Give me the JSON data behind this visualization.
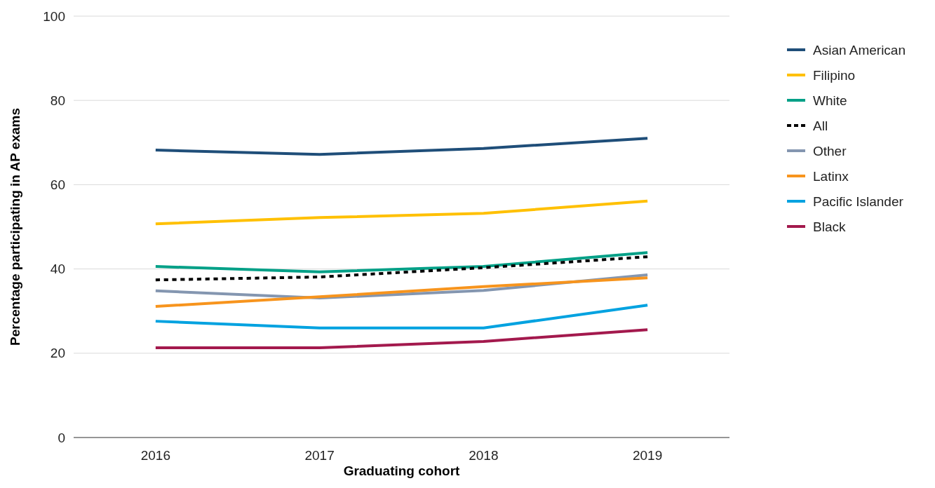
{
  "chart_data": {
    "type": "line",
    "xlabel": "Graduating cohort",
    "ylabel": "Percentage participating in AP exams",
    "categories": [
      "2016",
      "2017",
      "2018",
      "2019"
    ],
    "ylim": [
      0,
      100
    ],
    "yticks": [
      0,
      20,
      40,
      60,
      80,
      100
    ],
    "grid": "y",
    "legend": "right",
    "line_style": "solid",
    "series": [
      {
        "name": "Asian American",
        "color": "#1f4e79",
        "values": [
          68.2,
          67.2,
          68.6,
          71.0
        ]
      },
      {
        "name": "Filipino",
        "color": "#ffc000",
        "values": [
          50.7,
          52.2,
          53.2,
          56.1
        ]
      },
      {
        "name": "White",
        "color": "#00a087",
        "values": [
          40.6,
          39.3,
          40.6,
          43.9
        ]
      },
      {
        "name": "All",
        "color": "#000000",
        "line_style": "dashed",
        "values": [
          37.4,
          38.1,
          40.3,
          42.9
        ]
      },
      {
        "name": "Other",
        "color": "#8496b0",
        "values": [
          34.8,
          33.1,
          34.9,
          38.6
        ]
      },
      {
        "name": "Latinx",
        "color": "#f7941d",
        "values": [
          31.1,
          33.4,
          35.8,
          37.9
        ]
      },
      {
        "name": "Pacific Islander",
        "color": "#00a2e0",
        "values": [
          27.6,
          26.0,
          26.0,
          31.4
        ]
      },
      {
        "name": "Black",
        "color": "#a3194d",
        "values": [
          21.3,
          21.3,
          22.8,
          25.6
        ]
      }
    ]
  }
}
